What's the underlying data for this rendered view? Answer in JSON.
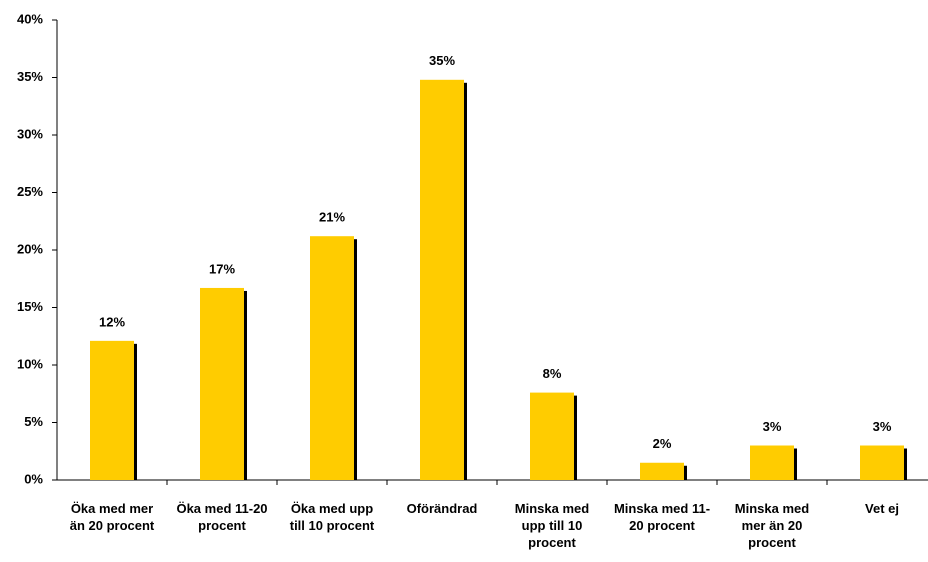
{
  "chart_data": {
    "type": "bar",
    "categories": [
      "Öka med mer än 20 procent",
      "Öka med 11-20 procent",
      "Öka med upp till 10 procent",
      "Oförändrad",
      "Minska med upp till 10 procent",
      "Minska med 11-20 procent",
      "Minska med mer än 20 procent",
      "Vet ej"
    ],
    "values": [
      12.1,
      16.7,
      21.2,
      34.8,
      7.6,
      1.5,
      3.0,
      3.0
    ],
    "value_labels": [
      "12%",
      "17%",
      "21%",
      "35%",
      "8%",
      "2%",
      "3%",
      "3%"
    ],
    "color": "#ffcc00",
    "ylim": [
      0,
      40
    ],
    "yticks": [
      {
        "value": 0,
        "label": "0%"
      },
      {
        "value": 5,
        "label": "5%"
      },
      {
        "value": 10,
        "label": "10%"
      },
      {
        "value": 15,
        "label": "15%"
      },
      {
        "value": 20,
        "label": "20%"
      },
      {
        "value": 25,
        "label": "25%"
      },
      {
        "value": 30,
        "label": "30%"
      },
      {
        "value": 35,
        "label": "35%"
      },
      {
        "value": 40,
        "label": "40%"
      }
    ],
    "grid": false
  }
}
